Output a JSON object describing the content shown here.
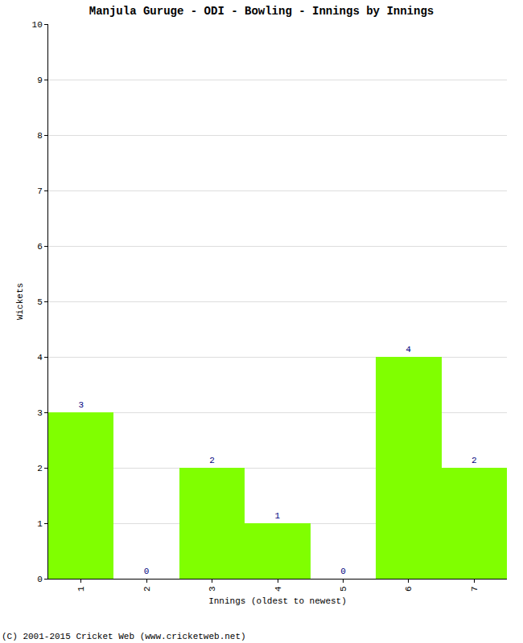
{
  "chart_data": {
    "type": "bar",
    "title": "Manjula Guruge - ODI - Bowling - Innings by Innings",
    "x_label": "Innings (oldest to newest)",
    "y_label": "Wickets",
    "categories": [
      "1",
      "2",
      "3",
      "4",
      "5",
      "6",
      "7"
    ],
    "values": [
      3,
      0,
      2,
      1,
      0,
      4,
      2
    ],
    "color": "#80ff00",
    "ylim": [
      0,
      10
    ],
    "yticks": [
      0,
      1,
      2,
      3,
      4,
      5,
      6,
      7,
      8,
      9,
      10
    ],
    "grid": true,
    "data_labels": true,
    "annotations": [
      "(C) 2001-2015 Cricket Web (www.cricketweb.net)"
    ]
  }
}
